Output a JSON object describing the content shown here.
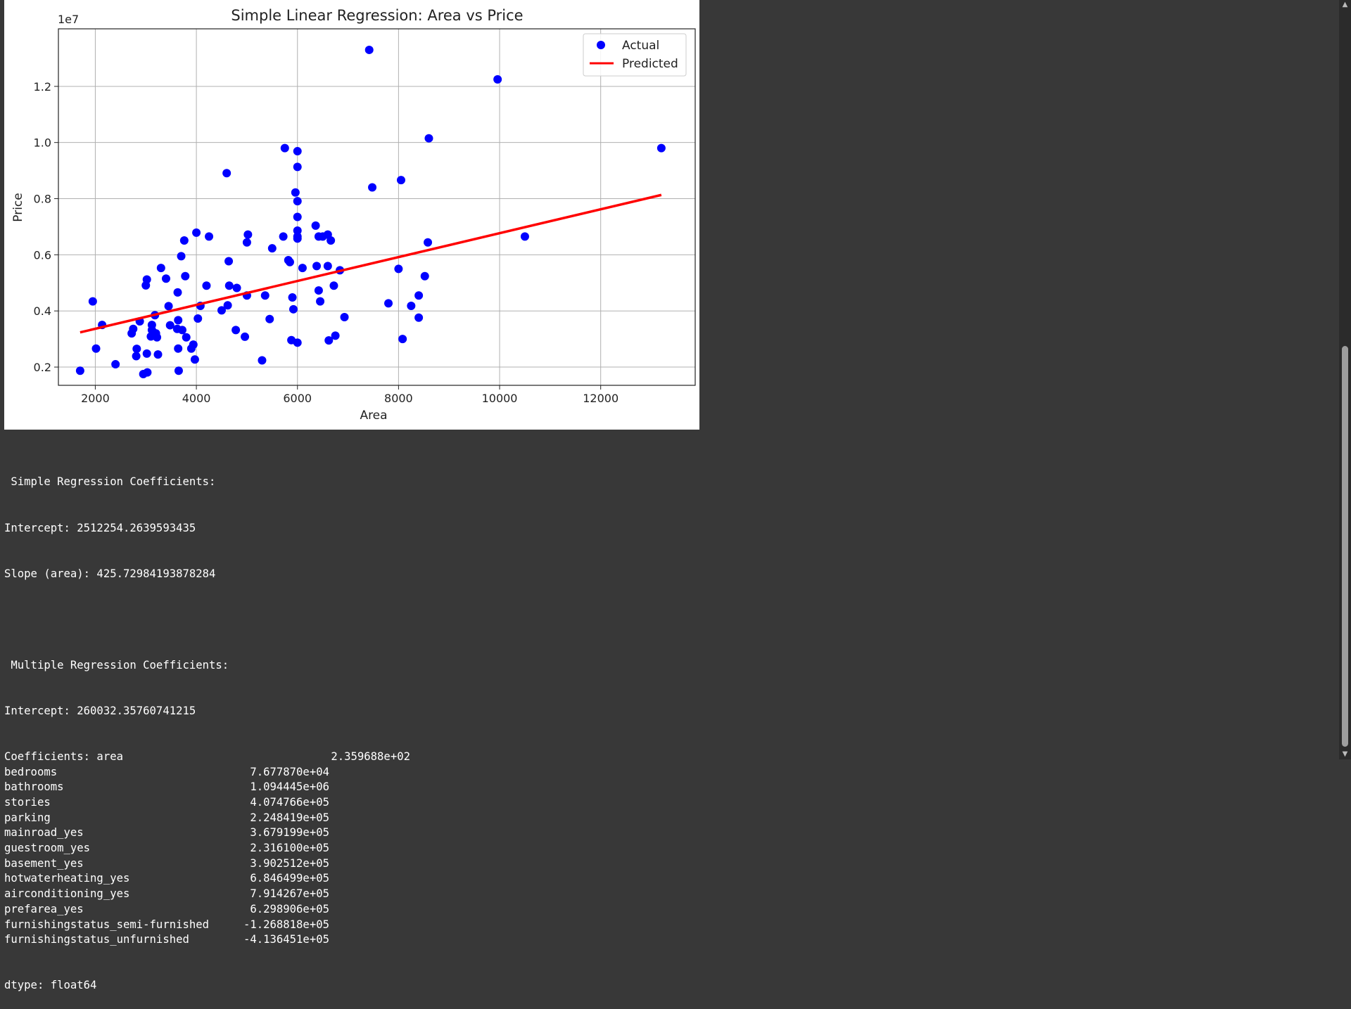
{
  "chart_data": {
    "type": "scatter",
    "title": "Simple Linear Regression: Area vs Price",
    "xlabel": "Area",
    "ylabel": "Price",
    "y_offset_text": "1e7",
    "xlim": [
      1270,
      13870
    ],
    "ylim": [
      0.135,
      1.405
    ],
    "xticks": [
      2000,
      4000,
      6000,
      8000,
      10000,
      12000
    ],
    "yticks": [
      0.2,
      0.4,
      0.6,
      0.8,
      1.0,
      1.2
    ],
    "ytick_labels": [
      "0.2",
      "0.4",
      "0.6",
      "0.8",
      "1.0",
      "1.2"
    ],
    "grid": true,
    "legend_position": "top-right",
    "colors": {
      "actual": "#0000ff",
      "predicted": "#ff0000"
    },
    "series": [
      {
        "name": "Actual",
        "kind": "scatter",
        "points": [
          [
            1700,
            0.187
          ],
          [
            1950,
            0.434
          ],
          [
            2015,
            0.266
          ],
          [
            2135,
            0.35
          ],
          [
            2400,
            0.21
          ],
          [
            2720,
            0.32
          ],
          [
            2750,
            0.336
          ],
          [
            2810,
            0.239
          ],
          [
            2820,
            0.265
          ],
          [
            2880,
            0.363
          ],
          [
            2950,
            0.175
          ],
          [
            3000,
            0.491
          ],
          [
            3020,
            0.512
          ],
          [
            3020,
            0.248
          ],
          [
            3030,
            0.181
          ],
          [
            3100,
            0.309
          ],
          [
            3120,
            0.35
          ],
          [
            3120,
            0.332
          ],
          [
            3180,
            0.385
          ],
          [
            3200,
            0.32
          ],
          [
            3220,
            0.306
          ],
          [
            3240,
            0.245
          ],
          [
            3300,
            0.553
          ],
          [
            3400,
            0.515
          ],
          [
            3450,
            0.417
          ],
          [
            3480,
            0.349
          ],
          [
            3620,
            0.336
          ],
          [
            3630,
            0.466
          ],
          [
            3640,
            0.367
          ],
          [
            3640,
            0.266
          ],
          [
            3650,
            0.187
          ],
          [
            3700,
            0.595
          ],
          [
            3720,
            0.332
          ],
          [
            3760,
            0.651
          ],
          [
            3780,
            0.524
          ],
          [
            3800,
            0.306
          ],
          [
            3900,
            0.266
          ],
          [
            3940,
            0.28
          ],
          [
            3970,
            0.227
          ],
          [
            4000,
            0.679
          ],
          [
            4030,
            0.373
          ],
          [
            4080,
            0.418
          ],
          [
            4200,
            0.49
          ],
          [
            4250,
            0.665
          ],
          [
            4500,
            0.402
          ],
          [
            4600,
            0.891
          ],
          [
            4620,
            0.42
          ],
          [
            4640,
            0.577
          ],
          [
            4650,
            0.49
          ],
          [
            4780,
            0.332
          ],
          [
            4800,
            0.482
          ],
          [
            4960,
            0.308
          ],
          [
            5000,
            0.455
          ],
          [
            5000,
            0.644
          ],
          [
            5020,
            0.672
          ],
          [
            5300,
            0.224
          ],
          [
            5360,
            0.455
          ],
          [
            5450,
            0.371
          ],
          [
            5500,
            0.623
          ],
          [
            5720,
            0.665
          ],
          [
            5750,
            0.98
          ],
          [
            5820,
            0.581
          ],
          [
            5850,
            0.574
          ],
          [
            5880,
            0.296
          ],
          [
            5900,
            0.448
          ],
          [
            5920,
            0.406
          ],
          [
            5960,
            0.822
          ],
          [
            6000,
            0.287
          ],
          [
            6000,
            0.969
          ],
          [
            6000,
            0.913
          ],
          [
            6000,
            0.791
          ],
          [
            6000,
            0.735
          ],
          [
            6000,
            0.686
          ],
          [
            6000,
            0.665
          ],
          [
            6000,
            0.658
          ],
          [
            6100,
            0.553
          ],
          [
            6360,
            0.704
          ],
          [
            6380,
            0.56
          ],
          [
            6420,
            0.665
          ],
          [
            6420,
            0.473
          ],
          [
            6450,
            0.434
          ],
          [
            6500,
            0.665
          ],
          [
            6600,
            0.672
          ],
          [
            6600,
            0.56
          ],
          [
            6620,
            0.295
          ],
          [
            6660,
            0.651
          ],
          [
            6720,
            0.49
          ],
          [
            6750,
            0.312
          ],
          [
            6840,
            0.545
          ],
          [
            6930,
            0.378
          ],
          [
            7420,
            1.33
          ],
          [
            7480,
            0.84
          ],
          [
            7800,
            0.427
          ],
          [
            8000,
            0.55
          ],
          [
            8050,
            0.866
          ],
          [
            8080,
            0.3
          ],
          [
            8250,
            0.418
          ],
          [
            8400,
            0.455
          ],
          [
            8400,
            0.376
          ],
          [
            8520,
            0.524
          ],
          [
            8580,
            0.644
          ],
          [
            8600,
            1.015
          ],
          [
            9960,
            1.225
          ],
          [
            10500,
            0.665
          ],
          [
            13200,
            0.98
          ]
        ]
      },
      {
        "name": "Predicted",
        "kind": "line",
        "points": [
          [
            1700,
            0.3236
          ],
          [
            13200,
            0.8132
          ]
        ]
      }
    ]
  },
  "output": {
    "simple_header": " Simple Regression Coefficients:",
    "simple_intercept": "Intercept: 2512254.2639593435",
    "simple_slope": "Slope (area): 425.72984193878284",
    "multiple_header": " Multiple Regression Coefficients:",
    "multiple_intercept": "Intercept: 260032.35760741215",
    "coef_rows": [
      {
        "name": "Coefficients: area",
        "value": "2.359688e+02"
      },
      {
        "name": "bedrooms",
        "value": "7.677870e+04"
      },
      {
        "name": "bathrooms",
        "value": "1.094445e+06"
      },
      {
        "name": "stories",
        "value": "4.074766e+05"
      },
      {
        "name": "parking",
        "value": "2.248419e+05"
      },
      {
        "name": "mainroad_yes",
        "value": "3.679199e+05"
      },
      {
        "name": "guestroom_yes",
        "value": "2.316100e+05"
      },
      {
        "name": "basement_yes",
        "value": "3.902512e+05"
      },
      {
        "name": "hotwaterheating_yes",
        "value": "6.846499e+05"
      },
      {
        "name": "airconditioning_yes",
        "value": "7.914267e+05"
      },
      {
        "name": "prefarea_yes",
        "value": "6.298906e+05"
      },
      {
        "name": "furnishingstatus_semi-furnished",
        "value": "-1.268818e+05"
      },
      {
        "name": "furnishingstatus_unfurnished",
        "value": "-4.136451e+05"
      }
    ],
    "dtype_line": "dtype: float64"
  },
  "scrollbar": {
    "up_icon": "triangle-up",
    "down_icon": "triangle-down"
  }
}
